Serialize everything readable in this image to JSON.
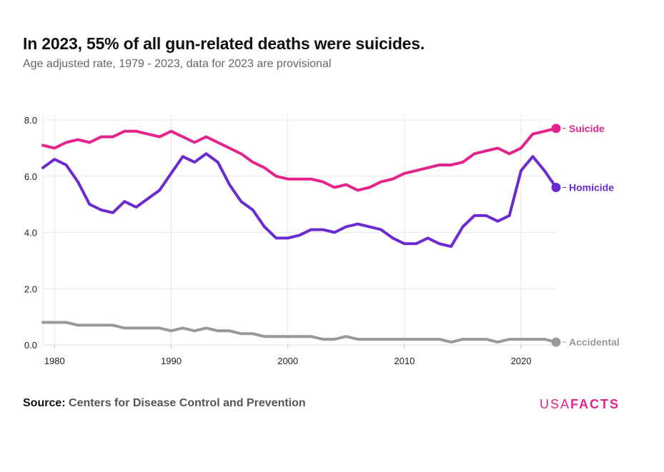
{
  "header": {
    "title": "In 2023, 55% of all gun-related deaths were suicides.",
    "subtitle": "Age adjusted rate, 1979 - 2023, data for 2023 are provisional"
  },
  "footer": {
    "source_label": "Source:",
    "source_value": "Centers for Disease Control and Prevention",
    "logo_usa": "USA",
    "logo_facts": "FACTS"
  },
  "colors": {
    "suicide": "#e3248c",
    "homicide": "#6b2bd0",
    "accidental": "#999999",
    "logo": "#e3248c"
  },
  "chart_data": {
    "type": "line",
    "title": "In 2023, 55% of all gun-related deaths were suicides.",
    "subtitle": "Age adjusted rate, 1979 - 2023, data for 2023 are provisional",
    "xlabel": "",
    "ylabel": "",
    "xlim": [
      1979,
      2023
    ],
    "ylim": [
      0,
      8
    ],
    "x_ticks": [
      1980,
      1990,
      2000,
      2010,
      2020
    ],
    "y_ticks": [
      0,
      2,
      4,
      6,
      8
    ],
    "y_tick_labels": [
      "0.0",
      "2.0",
      "4.0",
      "6.0",
      "8.0"
    ],
    "grid": true,
    "legend": "end-labels",
    "x": [
      1979,
      1980,
      1981,
      1982,
      1983,
      1984,
      1985,
      1986,
      1987,
      1988,
      1989,
      1990,
      1991,
      1992,
      1993,
      1994,
      1995,
      1996,
      1997,
      1998,
      1999,
      2000,
      2001,
      2002,
      2003,
      2004,
      2005,
      2006,
      2007,
      2008,
      2009,
      2010,
      2011,
      2012,
      2013,
      2014,
      2015,
      2016,
      2017,
      2018,
      2019,
      2020,
      2021,
      2022,
      2023
    ],
    "series": [
      {
        "name": "Suicide",
        "color": "#e3248c",
        "values": [
          7.1,
          7.0,
          7.2,
          7.3,
          7.2,
          7.4,
          7.4,
          7.6,
          7.6,
          7.5,
          7.4,
          7.6,
          7.4,
          7.2,
          7.4,
          7.2,
          7.0,
          6.8,
          6.5,
          6.3,
          6.0,
          5.9,
          5.9,
          5.9,
          5.8,
          5.6,
          5.7,
          5.5,
          5.6,
          5.8,
          5.9,
          6.1,
          6.2,
          6.3,
          6.4,
          6.4,
          6.5,
          6.8,
          6.9,
          7.0,
          6.8,
          7.0,
          7.5,
          7.6,
          7.7
        ]
      },
      {
        "name": "Homicide",
        "color": "#6b2bd0",
        "values": [
          6.3,
          6.6,
          6.4,
          5.8,
          5.0,
          4.8,
          4.7,
          5.1,
          4.9,
          5.2,
          5.5,
          6.1,
          6.7,
          6.5,
          6.8,
          6.5,
          5.7,
          5.1,
          4.8,
          4.2,
          3.8,
          3.8,
          3.9,
          4.1,
          4.1,
          4.0,
          4.2,
          4.3,
          4.2,
          4.1,
          3.8,
          3.6,
          3.6,
          3.8,
          3.6,
          3.5,
          4.2,
          4.6,
          4.6,
          4.4,
          4.6,
          6.2,
          6.7,
          6.2,
          5.6
        ]
      },
      {
        "name": "Accidental",
        "color": "#999999",
        "values": [
          0.8,
          0.8,
          0.8,
          0.7,
          0.7,
          0.7,
          0.7,
          0.6,
          0.6,
          0.6,
          0.6,
          0.5,
          0.6,
          0.5,
          0.6,
          0.5,
          0.5,
          0.4,
          0.4,
          0.3,
          0.3,
          0.3,
          0.3,
          0.3,
          0.2,
          0.2,
          0.3,
          0.2,
          0.2,
          0.2,
          0.2,
          0.2,
          0.2,
          0.2,
          0.2,
          0.1,
          0.2,
          0.2,
          0.2,
          0.1,
          0.2,
          0.2,
          0.2,
          0.2,
          0.1
        ]
      }
    ]
  }
}
